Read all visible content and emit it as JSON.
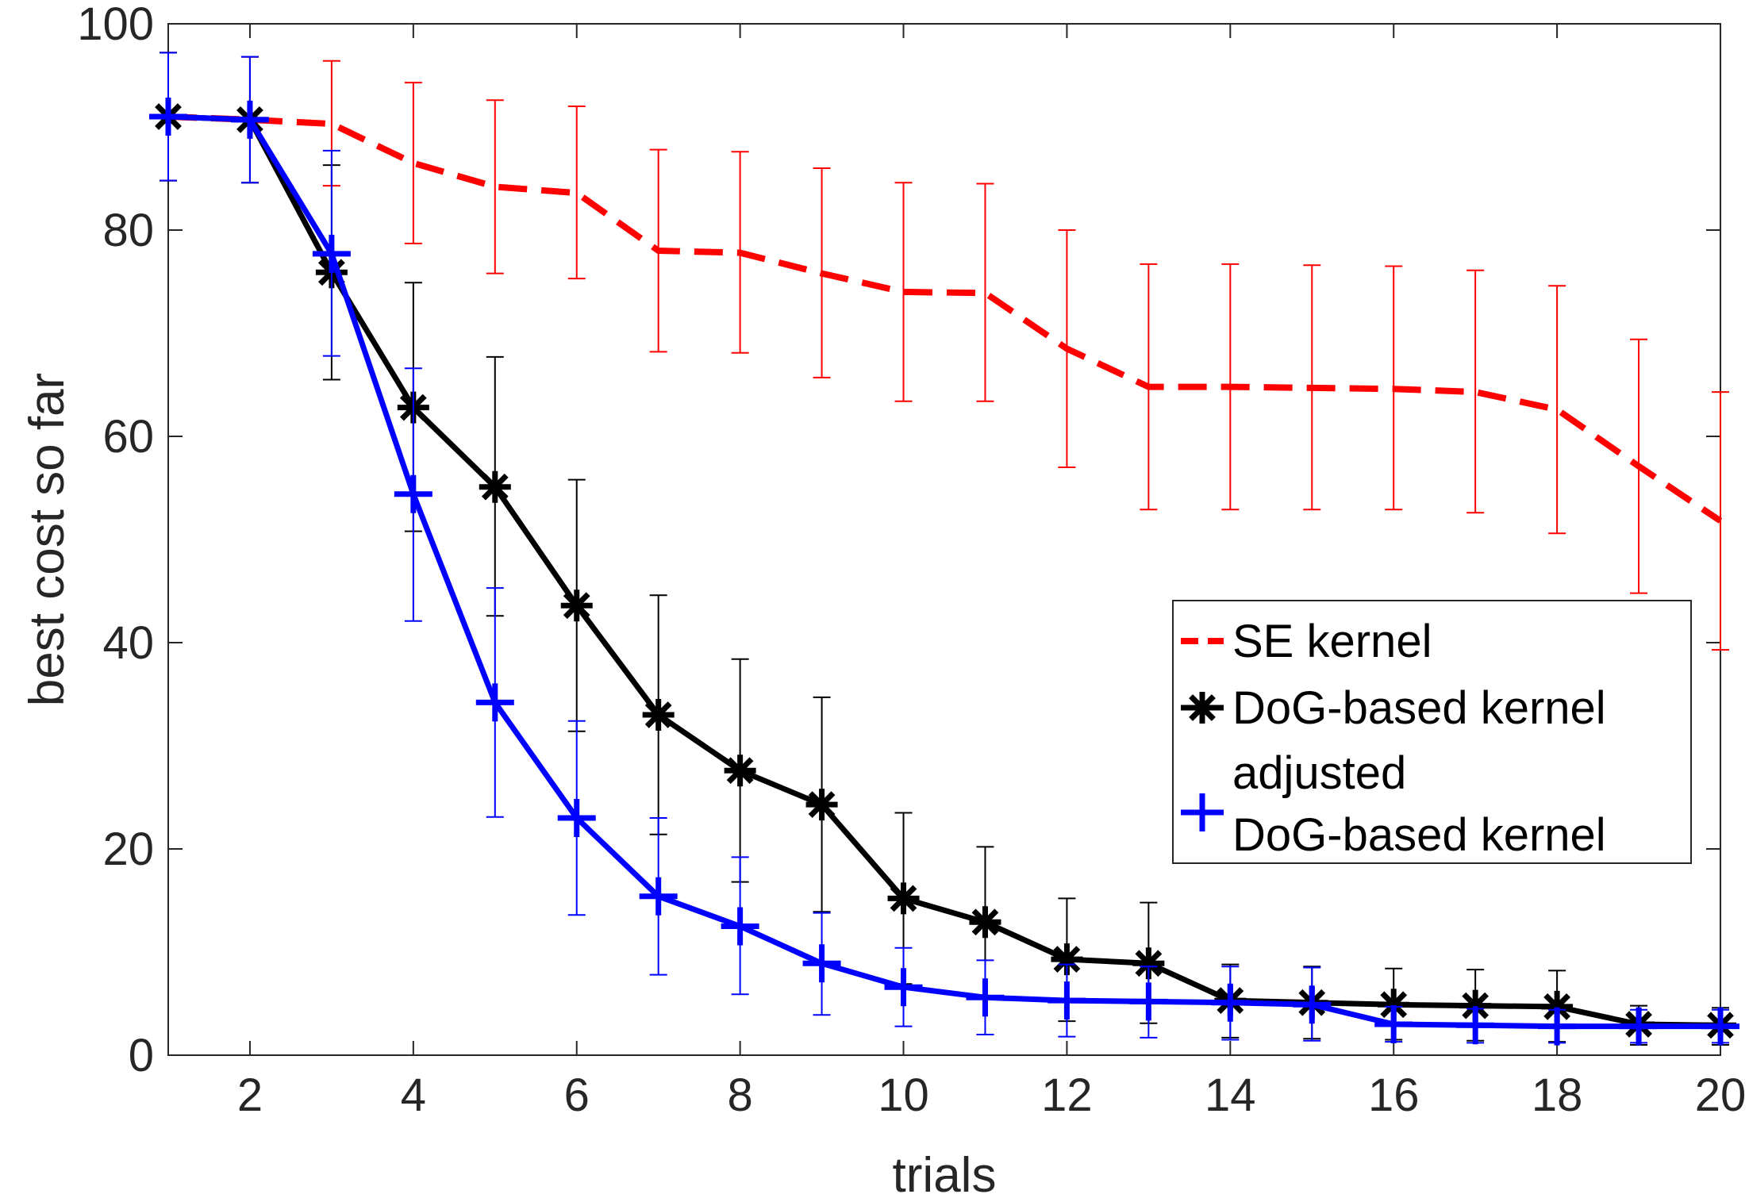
{
  "chart_data": {
    "type": "line",
    "xlabel": "trials",
    "ylabel": "best cost so far",
    "xlim": [
      1,
      20
    ],
    "ylim": [
      0,
      100
    ],
    "xticks": [
      2,
      4,
      6,
      8,
      10,
      12,
      14,
      16,
      18,
      20
    ],
    "yticks": [
      0,
      20,
      40,
      60,
      80,
      100
    ],
    "grid": false,
    "box": true,
    "legend_position": "right",
    "x": [
      1,
      2,
      3,
      4,
      5,
      6,
      7,
      8,
      9,
      10,
      11,
      12,
      13,
      14,
      15,
      16,
      17,
      18,
      19,
      20
    ],
    "series": [
      {
        "name": "SE kernel",
        "color": "#ff0000",
        "line_style": "dashed",
        "marker": "none",
        "values": [
          91,
          90.7,
          90.3,
          86.5,
          84.2,
          83.6,
          78,
          77.8,
          75.8,
          74,
          73.9,
          68.5,
          64.8,
          64.8,
          64.7,
          64.6,
          64.3,
          62.6,
          57.1,
          51.8
        ],
        "err_low": [
          84.8,
          84.6,
          84.3,
          78.7,
          75.8,
          75.3,
          68.2,
          68.1,
          65.7,
          63.4,
          63.4,
          57,
          52.9,
          52.9,
          52.9,
          52.9,
          52.6,
          50.6,
          44.8,
          39.3
        ],
        "err_high": [
          97.2,
          96.8,
          96.4,
          94.3,
          92.6,
          92,
          87.8,
          87.6,
          86,
          84.6,
          84.5,
          80,
          76.7,
          76.7,
          76.6,
          76.5,
          76.1,
          74.6,
          69.4,
          64.3
        ]
      },
      {
        "name": "DoG-based kernel",
        "color": "#000000",
        "line_style": "solid",
        "marker": "asterisk",
        "values": [
          91,
          90.7,
          75.9,
          62.8,
          55.1,
          43.6,
          33,
          27.6,
          24.3,
          15.2,
          12.9,
          9.3,
          8.9,
          5.3,
          5.1,
          4.9,
          4.8,
          4.7,
          3,
          2.9
        ],
        "err_low": [
          84.8,
          84.6,
          65.5,
          50.8,
          42.6,
          31.4,
          21.4,
          16.8,
          13.9,
          6.9,
          5.6,
          3.3,
          3.1,
          1.7,
          1.6,
          1.5,
          1.4,
          1.3,
          1,
          1
        ],
        "err_high": [
          97.2,
          96.8,
          86.3,
          74.9,
          67.7,
          55.8,
          44.6,
          38.4,
          34.7,
          23.5,
          20.2,
          15.2,
          14.8,
          8.8,
          8.6,
          8.4,
          8.3,
          8.2,
          4.8,
          4.6
        ]
      },
      {
        "name": "adjusted DoG-based kernel",
        "legend_lines": [
          "adjusted",
          "DoG-based kernel"
        ],
        "color": "#0000ff",
        "line_style": "solid",
        "marker": "plus",
        "values": [
          91,
          90.7,
          77.7,
          54.4,
          34.2,
          23,
          15.4,
          12.5,
          8.9,
          6.6,
          5.6,
          5.3,
          5.2,
          5.1,
          4.9,
          3,
          2.9,
          2.8,
          2.8,
          2.8
        ],
        "err_low": [
          84.8,
          84.6,
          67.8,
          42.1,
          23.1,
          13.6,
          7.8,
          5.9,
          3.9,
          2.8,
          2,
          1.8,
          1.7,
          1.5,
          1.4,
          1.3,
          1.2,
          1.2,
          1.2,
          1.2
        ],
        "err_high": [
          97.2,
          96.8,
          87.7,
          66.6,
          45.3,
          32.4,
          23,
          19.2,
          13.8,
          10.4,
          9.2,
          8.8,
          8.6,
          8.6,
          8.5,
          4.7,
          4.5,
          4.4,
          4.4,
          4.4
        ]
      }
    ]
  }
}
